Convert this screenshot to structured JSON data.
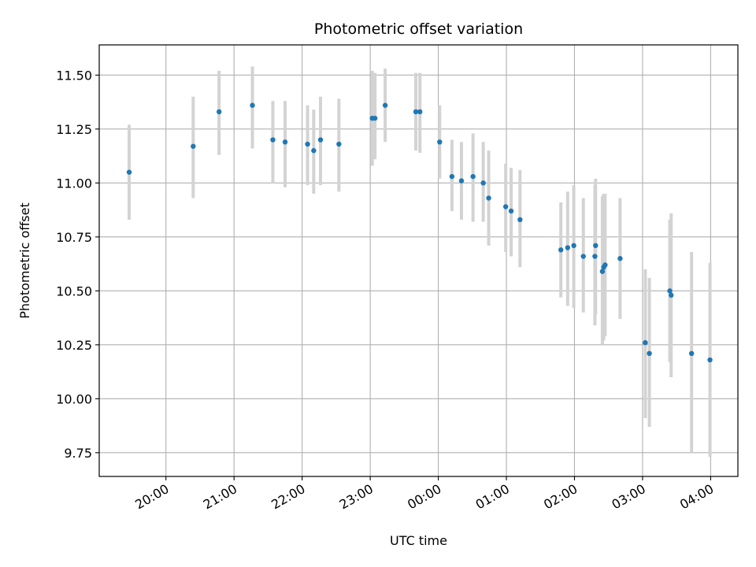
{
  "chart_data": {
    "type": "scatter",
    "title": "Photometric offset variation",
    "xlabel": "UTC time",
    "ylabel": "Photometric offset",
    "x_unit": "hours",
    "xlim": [
      -4.98,
      4.4
    ],
    "ylim": [
      9.64,
      11.64
    ],
    "grid": true,
    "x_ticks": [
      {
        "value": -4,
        "label": "20:00"
      },
      {
        "value": -3,
        "label": "21:00"
      },
      {
        "value": -2,
        "label": "22:00"
      },
      {
        "value": -1,
        "label": "23:00"
      },
      {
        "value": 0,
        "label": "00:00"
      },
      {
        "value": 1,
        "label": "01:00"
      },
      {
        "value": 2,
        "label": "02:00"
      },
      {
        "value": 3,
        "label": "03:00"
      },
      {
        "value": 4,
        "label": "04:00"
      }
    ],
    "y_ticks": [
      {
        "value": 9.75,
        "label": "9.75"
      },
      {
        "value": 10.0,
        "label": "10.00"
      },
      {
        "value": 10.25,
        "label": "10.25"
      },
      {
        "value": 10.5,
        "label": "10.50"
      },
      {
        "value": 10.75,
        "label": "10.75"
      },
      {
        "value": 11.0,
        "label": "11.00"
      },
      {
        "value": 11.25,
        "label": "11.25"
      },
      {
        "value": 11.5,
        "label": "11.50"
      }
    ],
    "colors": {
      "point": "#1f77b4",
      "errorbar": "#d3d3d3",
      "grid": "#b0b0b0"
    },
    "points": [
      {
        "x": -4.54,
        "y": 11.05,
        "ylow": 10.83,
        "yhigh": 11.27
      },
      {
        "x": -3.6,
        "y": 11.17,
        "ylow": 10.93,
        "yhigh": 11.4
      },
      {
        "x": -3.22,
        "y": 11.33,
        "ylow": 11.13,
        "yhigh": 11.52
      },
      {
        "x": -2.73,
        "y": 11.36,
        "ylow": 11.16,
        "yhigh": 11.54
      },
      {
        "x": -2.43,
        "y": 11.2,
        "ylow": 11.0,
        "yhigh": 11.38
      },
      {
        "x": -2.25,
        "y": 11.19,
        "ylow": 10.98,
        "yhigh": 11.38
      },
      {
        "x": -1.92,
        "y": 11.18,
        "ylow": 10.99,
        "yhigh": 11.36
      },
      {
        "x": -1.83,
        "y": 11.15,
        "ylow": 10.95,
        "yhigh": 11.34
      },
      {
        "x": -1.73,
        "y": 11.2,
        "ylow": 10.99,
        "yhigh": 11.4
      },
      {
        "x": -1.46,
        "y": 11.18,
        "ylow": 10.96,
        "yhigh": 11.39
      },
      {
        "x": -0.97,
        "y": 11.3,
        "ylow": 11.08,
        "yhigh": 11.52
      },
      {
        "x": -0.93,
        "y": 11.3,
        "ylow": 11.11,
        "yhigh": 11.51
      },
      {
        "x": -0.78,
        "y": 11.36,
        "ylow": 11.19,
        "yhigh": 11.53
      },
      {
        "x": -0.33,
        "y": 11.33,
        "ylow": 11.15,
        "yhigh": 11.51
      },
      {
        "x": -0.27,
        "y": 11.33,
        "ylow": 11.14,
        "yhigh": 11.51
      },
      {
        "x": 0.02,
        "y": 11.19,
        "ylow": 11.02,
        "yhigh": 11.36
      },
      {
        "x": 0.2,
        "y": 11.03,
        "ylow": 10.87,
        "yhigh": 11.2
      },
      {
        "x": 0.34,
        "y": 11.01,
        "ylow": 10.83,
        "yhigh": 11.19
      },
      {
        "x": 0.51,
        "y": 11.03,
        "ylow": 10.82,
        "yhigh": 11.23
      },
      {
        "x": 0.66,
        "y": 11.0,
        "ylow": 10.82,
        "yhigh": 11.19
      },
      {
        "x": 0.74,
        "y": 10.93,
        "ylow": 10.71,
        "yhigh": 11.15
      },
      {
        "x": 0.99,
        "y": 10.89,
        "ylow": 10.68,
        "yhigh": 11.09
      },
      {
        "x": 1.07,
        "y": 10.87,
        "ylow": 10.66,
        "yhigh": 11.07
      },
      {
        "x": 1.2,
        "y": 10.83,
        "ylow": 10.61,
        "yhigh": 11.06
      },
      {
        "x": 1.8,
        "y": 10.69,
        "ylow": 10.47,
        "yhigh": 10.91
      },
      {
        "x": 1.9,
        "y": 10.7,
        "ylow": 10.43,
        "yhigh": 10.96
      },
      {
        "x": 1.99,
        "y": 10.71,
        "ylow": 10.42,
        "yhigh": 10.99
      },
      {
        "x": 2.13,
        "y": 10.66,
        "ylow": 10.4,
        "yhigh": 10.93
      },
      {
        "x": 2.3,
        "y": 10.66,
        "ylow": 10.34,
        "yhigh": 10.99
      },
      {
        "x": 2.31,
        "y": 10.71,
        "ylow": 10.39,
        "yhigh": 11.02
      },
      {
        "x": 2.41,
        "y": 10.59,
        "ylow": 10.25,
        "yhigh": 10.94
      },
      {
        "x": 2.43,
        "y": 10.61,
        "ylow": 10.27,
        "yhigh": 10.95
      },
      {
        "x": 2.45,
        "y": 10.62,
        "ylow": 10.29,
        "yhigh": 10.95
      },
      {
        "x": 2.67,
        "y": 10.65,
        "ylow": 10.37,
        "yhigh": 10.93
      },
      {
        "x": 3.04,
        "y": 10.26,
        "ylow": 9.91,
        "yhigh": 10.6
      },
      {
        "x": 3.1,
        "y": 10.21,
        "ylow": 9.87,
        "yhigh": 10.56
      },
      {
        "x": 3.4,
        "y": 10.5,
        "ylow": 10.17,
        "yhigh": 10.83
      },
      {
        "x": 3.42,
        "y": 10.48,
        "ylow": 10.1,
        "yhigh": 10.86
      },
      {
        "x": 3.72,
        "y": 10.21,
        "ylow": 9.75,
        "yhigh": 10.68
      },
      {
        "x": 3.99,
        "y": 10.18,
        "ylow": 9.73,
        "yhigh": 10.63
      }
    ]
  }
}
